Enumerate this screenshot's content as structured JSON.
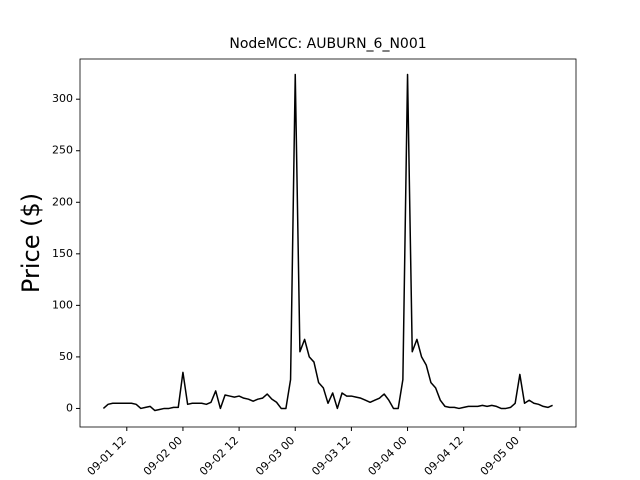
{
  "chart_data": {
    "type": "line",
    "title": "NodeMCC: AUBURN_6_N001",
    "y_label": "Price ($)",
    "x": [
      "09-01 07",
      "09-01 08",
      "09-01 09",
      "09-01 10",
      "09-01 11",
      "09-01 12",
      "09-01 13",
      "09-01 14",
      "09-01 15",
      "09-01 16",
      "09-01 17",
      "09-01 18",
      "09-01 19",
      "09-01 20",
      "09-01 21",
      "09-01 22",
      "09-01 23",
      "09-02 00",
      "09-02 01",
      "09-02 02",
      "09-02 03",
      "09-02 04",
      "09-02 05",
      "09-02 06",
      "09-02 07",
      "09-02 08",
      "09-02 09",
      "09-02 10",
      "09-02 11",
      "09-02 12",
      "09-02 13",
      "09-02 14",
      "09-02 15",
      "09-02 16",
      "09-02 17",
      "09-02 18",
      "09-02 19",
      "09-02 20",
      "09-02 21",
      "09-02 22",
      "09-02 23",
      "09-03 00",
      "09-03 01",
      "09-03 02",
      "09-03 03",
      "09-03 04",
      "09-03 05",
      "09-03 06",
      "09-03 07",
      "09-03 08",
      "09-03 09",
      "09-03 10",
      "09-03 11",
      "09-03 12",
      "09-03 13",
      "09-03 14",
      "09-03 15",
      "09-03 16",
      "09-03 17",
      "09-03 18",
      "09-03 19",
      "09-03 20",
      "09-03 21",
      "09-03 22",
      "09-03 23",
      "09-04 00",
      "09-04 01",
      "09-04 02",
      "09-04 03",
      "09-04 04",
      "09-04 05",
      "09-04 06",
      "09-04 07",
      "09-04 08",
      "09-04 09",
      "09-04 10",
      "09-04 11",
      "09-04 12",
      "09-04 13",
      "09-04 14",
      "09-04 15",
      "09-04 16",
      "09-04 17",
      "09-04 18",
      "09-04 19",
      "09-04 20",
      "09-04 21",
      "09-04 22",
      "09-04 23",
      "09-05 00",
      "09-05 01",
      "09-05 02",
      "09-05 03",
      "09-05 04",
      "09-05 05",
      "09-05 06",
      "09-05 07"
    ],
    "series": [
      {
        "color": "#000000",
        "values": [
          0,
          4,
          5,
          5,
          5,
          5,
          5,
          4,
          0,
          1,
          2,
          -2,
          -1,
          0,
          0,
          1,
          1,
          35,
          4,
          5,
          5,
          5,
          4,
          6,
          17,
          0,
          13,
          12,
          11,
          12,
          10,
          9,
          7,
          9,
          10,
          14,
          9,
          6,
          0,
          0,
          28,
          324,
          55,
          67,
          50,
          45,
          25,
          20,
          5,
          15,
          0,
          15,
          12,
          12,
          11,
          10,
          8,
          6,
          8,
          10,
          14,
          8,
          0,
          0,
          28,
          324,
          55,
          67,
          50,
          42,
          25,
          20,
          8,
          2,
          1,
          1,
          0,
          1,
          2,
          2,
          2,
          3,
          2,
          3,
          2,
          0,
          0,
          1,
          5,
          33,
          5,
          8,
          5,
          4,
          2,
          1,
          3
        ]
      }
    ],
    "xlim": [
      "09-01 02",
      "09-05 12"
    ],
    "xticks": [
      "09-01 12",
      "09-02 00",
      "09-02 12",
      "09-03 00",
      "09-03 12",
      "09-04 00",
      "09-04 12",
      "09-05 00"
    ],
    "ylim": [
      -18,
      339
    ],
    "yticks": [
      0,
      50,
      100,
      150,
      200,
      250,
      300
    ]
  }
}
